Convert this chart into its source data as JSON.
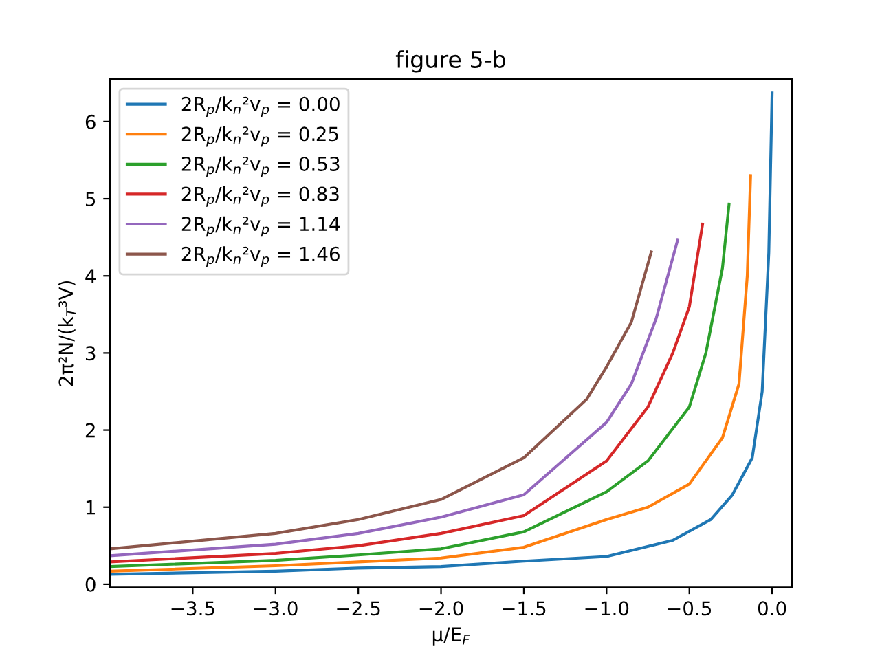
{
  "chart_data": {
    "type": "line",
    "title": "figure 5-b",
    "xlabel": "μ/E$_{F}$",
    "ylabel": "2π²N/(k$_{T}$³V)",
    "xlim": [
      -4.0,
      0.12
    ],
    "ylim": [
      -0.04,
      6.55
    ],
    "xticks": [
      {
        "value": -3.5,
        "label": "−3.5"
      },
      {
        "value": -3.0,
        "label": "−3.0"
      },
      {
        "value": -2.5,
        "label": "−2.5"
      },
      {
        "value": -2.0,
        "label": "−2.0"
      },
      {
        "value": -1.5,
        "label": "−1.5"
      },
      {
        "value": -1.0,
        "label": "−1.0"
      },
      {
        "value": -0.5,
        "label": "−0.5"
      },
      {
        "value": 0.0,
        "label": "0.0"
      }
    ],
    "yticks": [
      0,
      1,
      2,
      3,
      4,
      5,
      6
    ],
    "grid": false,
    "legend": "top left",
    "marker": "none",
    "line_style": "solid",
    "series": [
      {
        "name": "2R$_{p}$/k$_{n}$²v$_{p}$ = 0.00",
        "color": "#1f77b4",
        "x": [
          -4.0,
          -3.0,
          -2.5,
          -2.0,
          -1.5,
          -1.0,
          -0.6,
          -0.37,
          -0.24,
          -0.12,
          -0.06,
          -0.02,
          0.0
        ],
        "values": [
          0.13,
          0.17,
          0.21,
          0.23,
          0.3,
          0.36,
          0.57,
          0.84,
          1.16,
          1.64,
          2.5,
          4.3,
          6.37
        ]
      },
      {
        "name": "2R$_{p}$/k$_{n}$²v$_{p}$ = 0.25",
        "color": "#ff7f0e",
        "x": [
          -4.0,
          -3.0,
          -2.5,
          -2.0,
          -1.5,
          -1.0,
          -0.75,
          -0.5,
          -0.3,
          -0.2,
          -0.15,
          -0.13
        ],
        "values": [
          0.17,
          0.24,
          0.29,
          0.34,
          0.48,
          0.84,
          1.0,
          1.3,
          1.9,
          2.6,
          4.0,
          5.3
        ]
      },
      {
        "name": "2R$_{p}$/k$_{n}$²v$_{p}$ = 0.53",
        "color": "#2ca02c",
        "x": [
          -4.0,
          -3.0,
          -2.5,
          -2.0,
          -1.5,
          -1.0,
          -0.75,
          -0.5,
          -0.4,
          -0.3,
          -0.26
        ],
        "values": [
          0.23,
          0.31,
          0.38,
          0.46,
          0.68,
          1.2,
          1.6,
          2.3,
          3.0,
          4.1,
          4.93
        ]
      },
      {
        "name": "2R$_{p}$/k$_{n}$²v$_{p}$ = 0.83",
        "color": "#d62728",
        "x": [
          -4.0,
          -3.0,
          -2.5,
          -2.0,
          -1.5,
          -1.0,
          -0.75,
          -0.6,
          -0.5,
          -0.42
        ],
        "values": [
          0.29,
          0.4,
          0.5,
          0.66,
          0.89,
          1.6,
          2.3,
          3.0,
          3.6,
          4.67
        ]
      },
      {
        "name": "2R$_{p}$/k$_{n}$²v$_{p}$ = 1.14",
        "color": "#9467bd",
        "x": [
          -4.0,
          -3.0,
          -2.5,
          -2.0,
          -1.5,
          -1.0,
          -0.85,
          -0.7,
          -0.57
        ],
        "values": [
          0.37,
          0.52,
          0.66,
          0.87,
          1.16,
          2.1,
          2.6,
          3.45,
          4.47
        ]
      },
      {
        "name": "2R$_{p}$/k$_{n}$²v$_{p}$ = 1.46",
        "color": "#8c564b",
        "x": [
          -4.0,
          -3.0,
          -2.5,
          -2.0,
          -1.5,
          -1.12,
          -1.0,
          -0.85,
          -0.73
        ],
        "values": [
          0.46,
          0.66,
          0.84,
          1.1,
          1.64,
          2.4,
          2.82,
          3.4,
          4.31
        ]
      }
    ]
  }
}
